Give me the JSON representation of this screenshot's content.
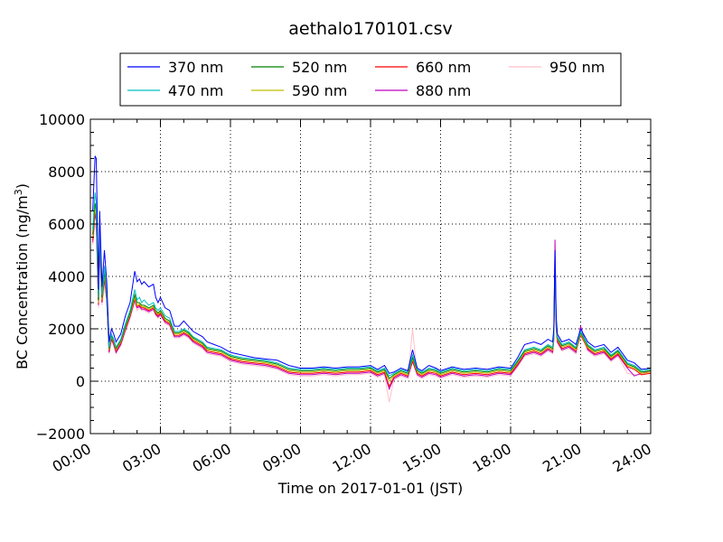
{
  "chart_data": {
    "type": "line",
    "title": "aethalo170101.csv",
    "xlabel": "Time on 2017-01-01 (JST)",
    "ylabel": "BC Concentration (ng/m³)",
    "ylabel_base": "BC Concentration (ng/m",
    "ylabel_sup": "3",
    "ylabel_end": ")",
    "x_unit": "hours",
    "xlim": [
      0,
      24
    ],
    "ylim": [
      -2000,
      10000
    ],
    "x_ticks": [
      0,
      3,
      6,
      9,
      12,
      15,
      18,
      21,
      24
    ],
    "x_tick_labels": [
      "00:00",
      "03:00",
      "06:00",
      "09:00",
      "12:00",
      "15:00",
      "18:00",
      "21:00",
      "24:00"
    ],
    "y_ticks": [
      -2000,
      0,
      2000,
      4000,
      6000,
      8000,
      10000
    ],
    "y_tick_labels": [
      "−2000",
      "0",
      "2000",
      "4000",
      "6000",
      "8000",
      "10000"
    ],
    "grid": true,
    "legend_position": "top",
    "x": [
      0.1,
      0.2,
      0.25,
      0.35,
      0.4,
      0.5,
      0.6,
      0.7,
      0.8,
      0.9,
      1.0,
      1.1,
      1.3,
      1.5,
      1.7,
      1.9,
      2.0,
      2.1,
      2.2,
      2.3,
      2.5,
      2.7,
      2.8,
      2.9,
      3.0,
      3.2,
      3.4,
      3.6,
      3.8,
      4.0,
      4.2,
      4.4,
      4.6,
      4.8,
      5.0,
      5.3,
      5.6,
      6.0,
      6.5,
      7.0,
      7.5,
      8.0,
      8.5,
      9.0,
      9.5,
      10.0,
      10.5,
      11.0,
      11.5,
      12.0,
      12.3,
      12.6,
      12.8,
      13.0,
      13.3,
      13.6,
      13.8,
      14.0,
      14.2,
      14.5,
      14.8,
      15.0,
      15.5,
      16.0,
      16.5,
      17.0,
      17.5,
      18.0,
      18.3,
      18.6,
      19.0,
      19.3,
      19.6,
      19.8,
      19.85,
      19.9,
      19.95,
      20.0,
      20.2,
      20.5,
      20.8,
      21.0,
      21.3,
      21.6,
      22.0,
      22.3,
      22.6,
      23.0,
      23.3,
      23.6,
      24.0
    ],
    "series": [
      {
        "name": "370 nm",
        "color": "#0000ff",
        "values": [
          6500,
          8600,
          8500,
          3500,
          6500,
          3600,
          5000,
          3800,
          1500,
          2000,
          1800,
          1500,
          1800,
          2500,
          3000,
          4200,
          3800,
          3900,
          3700,
          3800,
          3600,
          3700,
          3200,
          3000,
          3200,
          2800,
          2700,
          2100,
          2100,
          2300,
          2100,
          1900,
          1800,
          1700,
          1500,
          1400,
          1300,
          1100,
          1000,
          900,
          850,
          800,
          600,
          500,
          500,
          550,
          500,
          550,
          550,
          600,
          450,
          600,
          300,
          350,
          500,
          400,
          1200,
          500,
          400,
          600,
          500,
          400,
          550,
          450,
          500,
          450,
          550,
          500,
          900,
          1400,
          1500,
          1400,
          1600,
          1500,
          2000,
          5000,
          2500,
          1800,
          1500,
          1600,
          1400,
          2000,
          1500,
          1300,
          1400,
          1100,
          1300,
          800,
          700,
          450,
          500
        ]
      },
      {
        "name": "470 nm",
        "color": "#00bfbf",
        "values": [
          5800,
          7200,
          6800,
          3200,
          5800,
          3300,
          4400,
          3400,
          1300,
          1800,
          1600,
          1300,
          1600,
          2200,
          2700,
          3500,
          3100,
          3200,
          3000,
          3100,
          2900,
          3000,
          2800,
          2700,
          2800,
          2500,
          2400,
          1900,
          1900,
          2000,
          1900,
          1700,
          1600,
          1500,
          1300,
          1250,
          1200,
          1000,
          900,
          850,
          800,
          700,
          500,
          450,
          450,
          500,
          450,
          500,
          500,
          550,
          400,
          500,
          200,
          300,
          450,
          350,
          1000,
          450,
          350,
          500,
          450,
          350,
          500,
          400,
          450,
          400,
          500,
          450,
          800,
          1200,
          1300,
          1200,
          1400,
          1300,
          1800,
          4800,
          2300,
          1700,
          1400,
          1500,
          1300,
          1900,
          1400,
          1200,
          1300,
          1000,
          1200,
          700,
          600,
          400,
          450
        ]
      },
      {
        "name": "520 nm",
        "color": "#008000",
        "values": [
          5600,
          6800,
          6500,
          3100,
          5600,
          3200,
          4200,
          3300,
          1250,
          1750,
          1550,
          1250,
          1550,
          2100,
          2600,
          3300,
          3000,
          3000,
          2900,
          2900,
          2800,
          2900,
          2700,
          2600,
          2700,
          2400,
          2300,
          1850,
          1850,
          1950,
          1850,
          1650,
          1550,
          1450,
          1250,
          1200,
          1150,
          950,
          850,
          800,
          750,
          650,
          450,
          400,
          400,
          450,
          400,
          450,
          450,
          500,
          350,
          450,
          100,
          250,
          400,
          300,
          900,
          400,
          300,
          450,
          400,
          300,
          450,
          350,
          400,
          350,
          450,
          400,
          750,
          1150,
          1250,
          1150,
          1350,
          1250,
          1750,
          4600,
          2200,
          1650,
          1350,
          1450,
          1250,
          1850,
          1350,
          1150,
          1250,
          950,
          1150,
          650,
          550,
          350,
          400
        ]
      },
      {
        "name": "590 nm",
        "color": "#bfbf00",
        "values": [
          5500,
          6600,
          6300,
          3000,
          5500,
          3100,
          4100,
          3200,
          1200,
          1700,
          1500,
          1200,
          1500,
          2050,
          2550,
          3200,
          2900,
          2950,
          2850,
          2850,
          2750,
          2850,
          2650,
          2550,
          2650,
          2350,
          2250,
          1800,
          1800,
          1900,
          1800,
          1600,
          1500,
          1400,
          1200,
          1150,
          1100,
          900,
          800,
          750,
          700,
          600,
          400,
          350,
          350,
          400,
          350,
          400,
          400,
          450,
          300,
          400,
          0,
          200,
          350,
          250,
          850,
          350,
          250,
          400,
          350,
          250,
          400,
          300,
          350,
          300,
          400,
          350,
          700,
          1100,
          1200,
          1100,
          1300,
          1200,
          1700,
          4500,
          2150,
          1600,
          1300,
          1400,
          1200,
          1800,
          1300,
          1100,
          1200,
          900,
          1100,
          600,
          500,
          300,
          350
        ]
      },
      {
        "name": "660 nm",
        "color": "#ff0000",
        "values": [
          5400,
          6500,
          6200,
          2950,
          5400,
          3050,
          4000,
          3150,
          1150,
          1650,
          1450,
          1150,
          1450,
          2000,
          2500,
          3150,
          2850,
          2900,
          2800,
          2800,
          2700,
          2800,
          2600,
          2500,
          2600,
          2300,
          2200,
          1750,
          1750,
          1850,
          1750,
          1550,
          1450,
          1350,
          1150,
          1100,
          1050,
          850,
          750,
          700,
          650,
          550,
          350,
          300,
          300,
          350,
          300,
          350,
          350,
          400,
          250,
          350,
          -200,
          150,
          300,
          200,
          800,
          300,
          200,
          350,
          300,
          200,
          350,
          250,
          300,
          250,
          350,
          300,
          650,
          1050,
          1150,
          1050,
          1250,
          1150,
          1650,
          4400,
          2100,
          1550,
          1250,
          1350,
          1150,
          1750,
          1250,
          1050,
          1150,
          850,
          1050,
          550,
          450,
          250,
          300
        ]
      },
      {
        "name": "880 nm",
        "color": "#bf00bf",
        "values": [
          5300,
          6400,
          6100,
          2900,
          5300,
          3000,
          3900,
          3100,
          1100,
          1600,
          1400,
          1100,
          1400,
          1950,
          2450,
          3100,
          2800,
          2850,
          2750,
          2750,
          2650,
          2750,
          2550,
          2450,
          2550,
          2250,
          2150,
          1700,
          1700,
          1800,
          1700,
          1500,
          1400,
          1300,
          1100,
          1050,
          1000,
          800,
          700,
          650,
          600,
          500,
          300,
          250,
          250,
          300,
          250,
          300,
          300,
          350,
          200,
          300,
          -300,
          100,
          250,
          150,
          750,
          250,
          150,
          300,
          250,
          150,
          300,
          200,
          250,
          200,
          300,
          250,
          600,
          1000,
          1100,
          1000,
          1200,
          1100,
          1600,
          5400,
          2050,
          1500,
          1200,
          1300,
          1100,
          2100,
          1200,
          1000,
          1100,
          800,
          1000,
          500,
          200,
          300,
          400
        ]
      },
      {
        "name": "950 nm",
        "color": "#ffc0cb",
        "values": [
          5200,
          6000,
          5800,
          2800,
          5000,
          2900,
          3700,
          3000,
          1050,
          1550,
          1350,
          1050,
          1350,
          1900,
          2400,
          3000,
          2700,
          2800,
          2700,
          2700,
          2600,
          2700,
          2500,
          2400,
          2500,
          2200,
          2100,
          1650,
          1650,
          1750,
          1650,
          1450,
          1350,
          1250,
          1050,
          1000,
          950,
          750,
          650,
          600,
          550,
          450,
          250,
          200,
          200,
          250,
          200,
          250,
          250,
          300,
          150,
          250,
          -800,
          50,
          200,
          100,
          2000,
          200,
          100,
          250,
          200,
          100,
          250,
          150,
          200,
          150,
          250,
          200,
          550,
          950,
          1050,
          950,
          1150,
          1050,
          1550,
          4000,
          2000,
          1450,
          1150,
          1250,
          1050,
          1900,
          1150,
          950,
          1050,
          750,
          950,
          300,
          250,
          250,
          350
        ]
      }
    ]
  }
}
